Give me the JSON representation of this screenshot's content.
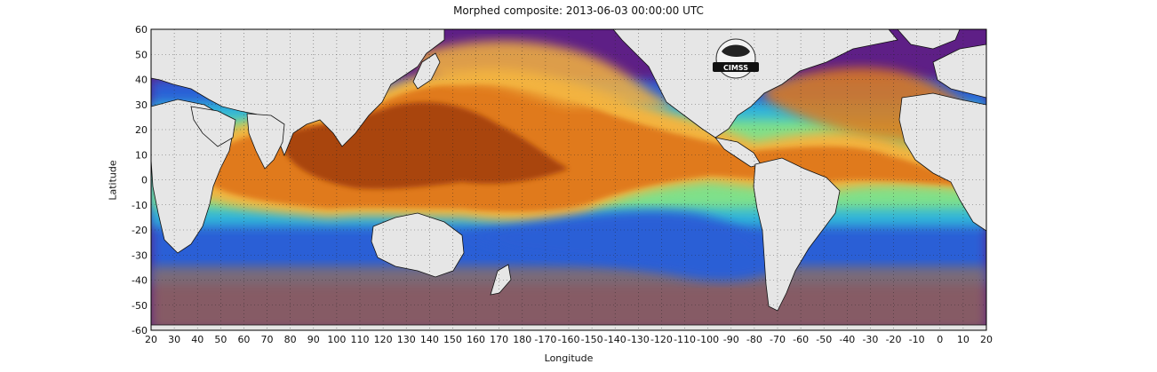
{
  "title": "Morphed composite: 2013-06-03 00:00:00 UTC",
  "xlabel": "Longitude",
  "ylabel": "Latitude",
  "logo_text": "CIMSS",
  "map": {
    "lon_range": [
      20,
      380
    ],
    "lat_range": [
      -60,
      60
    ],
    "x_tick_labels": [
      "20",
      "30",
      "40",
      "50",
      "60",
      "70",
      "80",
      "90",
      "100",
      "110",
      "120",
      "130",
      "140",
      "150",
      "160",
      "170",
      "180",
      "-170",
      "-160",
      "-150",
      "-140",
      "-130",
      "-120",
      "-110",
      "-100",
      "-90",
      "-80",
      "-70",
      "-60",
      "-50",
      "-40",
      "-30",
      "-20",
      "-10",
      "0",
      "10",
      "20"
    ],
    "y_tick_labels": [
      "60",
      "50",
      "40",
      "30",
      "20",
      "10",
      "0",
      "-10",
      "-20",
      "-30",
      "-40",
      "-50",
      "-60"
    ],
    "grid": true,
    "grid_style": "dotted",
    "colors": {
      "land": "#e6e6e6",
      "very_moist": "#a94410",
      "moist": "#e07a1c",
      "medium_high": "#f3b340",
      "medium": "#7fe08a",
      "medium_low": "#33b6d8",
      "dry": "#2a5fd6",
      "very_dry": "#5e1f86",
      "polar": "#94705a"
    }
  }
}
